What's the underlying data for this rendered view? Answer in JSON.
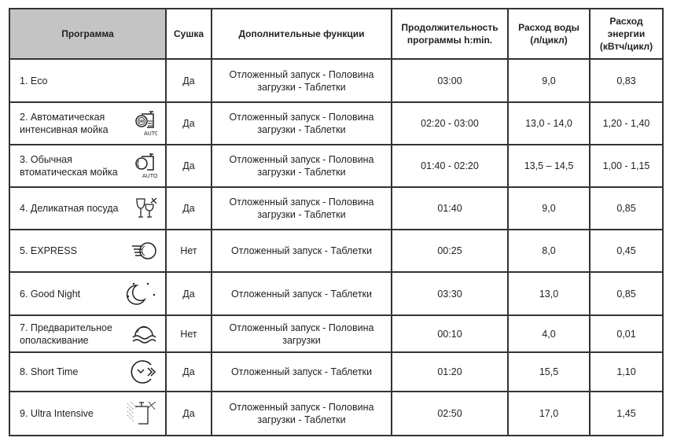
{
  "headers": [
    "Программа",
    "Сушка",
    "Дополнительные функции",
    "Продолжительность программы h:min.",
    "Расход воды (л/цикл)",
    "Расход энергии (кВтч/цикл)"
  ],
  "rows": [
    {
      "program": "1. Eco",
      "icon": "",
      "drying": "Да",
      "functions": "Отложенный запуск -  Половина загрузки - Таблетки",
      "duration": "03:00",
      "water": "9,0",
      "energy": "0,83"
    },
    {
      "program": "2. Автоматическая интенсивная мойка",
      "icon": "auto-intensive-icon",
      "icon_label": "AUTO",
      "drying": "Да",
      "functions": "Отложенный запуск -  Половина загрузки - Таблетки",
      "duration": "02:20 - 03:00",
      "water": "13,0 - 14,0",
      "energy": "1,20 - 1,40"
    },
    {
      "program": "3. Обычная втоматическая мойка",
      "icon": "auto-normal-icon",
      "icon_label": "AUTO",
      "drying": "Да",
      "functions": "Отложенный запуск -  Половина загрузки - Таблетки",
      "duration": "01:40 - 02:20",
      "water": "13,5 – 14,5",
      "energy": "1,00 - 1,15"
    },
    {
      "program": "4. Деликатная посуда",
      "icon": "glasses-icon",
      "drying": "Да",
      "functions": "Отложенный запуск -  Половина загрузки - Таблетки",
      "duration": "01:40",
      "water": "9,0",
      "energy": "0,85"
    },
    {
      "program": "5. EXPRESS",
      "icon": "express-icon",
      "drying": "Нет",
      "functions": "Отложенный запуск - Таблетки",
      "duration": "00:25",
      "water": "8,0",
      "energy": "0,45"
    },
    {
      "program": "6. Good Night",
      "icon": "moon-icon",
      "drying": "Да",
      "functions": "Отложенный запуск - Таблетки",
      "duration": "03:30",
      "water": "13,0",
      "energy": "0,85"
    },
    {
      "program": "7. Предварительное ополаскивание",
      "icon": "prewash-icon",
      "drying": "Нет",
      "functions": "Отложенный запуск -  Половина загрузки",
      "duration": "00:10",
      "water": "4,0",
      "energy": "0,01"
    },
    {
      "program": "8. Short Time",
      "icon": "short-time-icon",
      "drying": "Да",
      "functions": "Отложенный запуск - Таблетки",
      "duration": "01:20",
      "water": "15,5",
      "energy": "1,10"
    },
    {
      "program": "9. Ultra Intensive",
      "icon": "ultra-intensive-icon",
      "drying": "Да",
      "functions": "Отложенный запуск -  Половина загрузки - Таблетки",
      "duration": "02:50",
      "water": "17,0",
      "energy": "1,45"
    }
  ],
  "colors": {
    "header_bg": "#c4c4c4",
    "border": "#333333"
  }
}
